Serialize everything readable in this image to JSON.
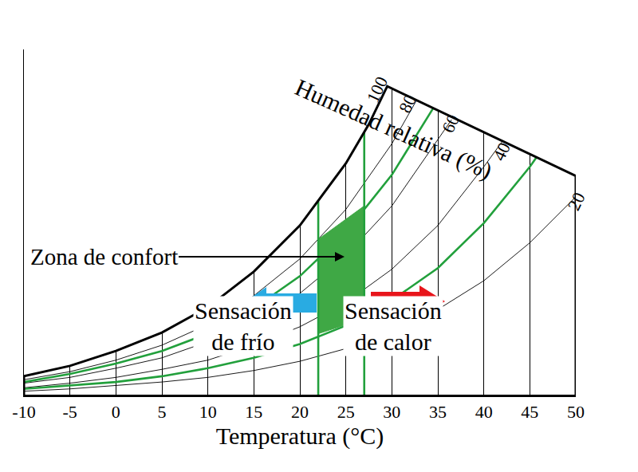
{
  "chart_data": {
    "type": "line",
    "xlabel": "Temperatura (°C)",
    "rh_title": "Humedad relativa (%)",
    "xlim": [
      -10,
      50
    ],
    "xticks": [
      -10,
      -5,
      0,
      5,
      10,
      15,
      20,
      25,
      30,
      35,
      40,
      45,
      50
    ],
    "ylim": [
      0,
      30
    ],
    "yticks": [],
    "tick_labels": "x",
    "grid": true,
    "boundary": {
      "color": "#000000",
      "x": [
        -10,
        -10,
        -5,
        0,
        5,
        10,
        15,
        20,
        25,
        27.5,
        29.5,
        50,
        50
      ],
      "values": [
        0,
        1.6,
        2.5,
        3.8,
        5.4,
        7.6,
        10.7,
        14.7,
        20.1,
        23.5,
        26.8,
        19.0,
        0
      ]
    },
    "series": [
      {
        "rh": 80,
        "color": "#000000",
        "line_style": "thin",
        "x": [
          -10,
          -5,
          0,
          5,
          10,
          15,
          20,
          25,
          30,
          32.7
        ],
        "values": [
          1.3,
          2.0,
          3.0,
          4.3,
          6.1,
          8.6,
          11.8,
          16.1,
          21.8,
          25.6
        ]
      },
      {
        "rh": 60,
        "color": "#000000",
        "line_style": "thin",
        "x": [
          -10,
          -5,
          0,
          5,
          10,
          15,
          20,
          25,
          30,
          35,
          36.5
        ],
        "values": [
          1.0,
          1.5,
          2.3,
          3.2,
          4.6,
          6.4,
          8.8,
          12.1,
          16.4,
          22.1,
          23.9
        ]
      },
      {
        "rh": 40,
        "color": "#000000",
        "line_style": "thin",
        "x": [
          -10,
          -5,
          0,
          5,
          10,
          15,
          20,
          25,
          30,
          35,
          40,
          42
        ],
        "values": [
          0.6,
          1.0,
          1.5,
          2.2,
          3.0,
          4.3,
          5.9,
          8.0,
          10.9,
          14.7,
          19.8,
          22.0
        ]
      },
      {
        "rh": 20,
        "color": "#000000",
        "line_style": "thin",
        "x": [
          -10,
          -5,
          0,
          5,
          10,
          15,
          20,
          25,
          30,
          35,
          40,
          45,
          50
        ],
        "values": [
          0.3,
          0.5,
          0.8,
          1.1,
          1.5,
          2.1,
          2.9,
          4.0,
          5.5,
          7.4,
          9.9,
          13.2,
          17.2
        ]
      },
      {
        "rh": 70,
        "color": "#22a03c",
        "line_style": "thick",
        "x": [
          -10,
          -5,
          0,
          5,
          10,
          15,
          20,
          25,
          30,
          34.5
        ],
        "values": [
          1.1,
          1.8,
          2.7,
          3.8,
          5.3,
          7.5,
          10.3,
          14.1,
          19.1,
          24.9
        ]
      },
      {
        "rh": 30,
        "color": "#22a03c",
        "line_style": "thick",
        "x": [
          -10,
          -5,
          0,
          5,
          10,
          15,
          20,
          25,
          30,
          35,
          40,
          45,
          45.7
        ],
        "values": [
          0.5,
          0.8,
          1.1,
          1.6,
          2.3,
          3.2,
          4.4,
          6.0,
          8.2,
          11.0,
          14.9,
          19.8,
          20.6
        ]
      }
    ],
    "rh_labels": [
      100,
      80,
      60,
      40,
      20
    ],
    "comfort_zone": {
      "label": "Zona de confort",
      "color": "#3fa845",
      "x": [
        22,
        27,
        27,
        22
      ],
      "values": [
        5.3,
        6.6,
        16.4,
        13.5
      ]
    },
    "zone_limits": {
      "color": "#22a03c",
      "x": [
        22,
        27
      ],
      "values": [
        16.8,
        22.8
      ]
    },
    "cold_label": "Sensación\nde frío",
    "hot_label": "Sensación\nde calor"
  }
}
